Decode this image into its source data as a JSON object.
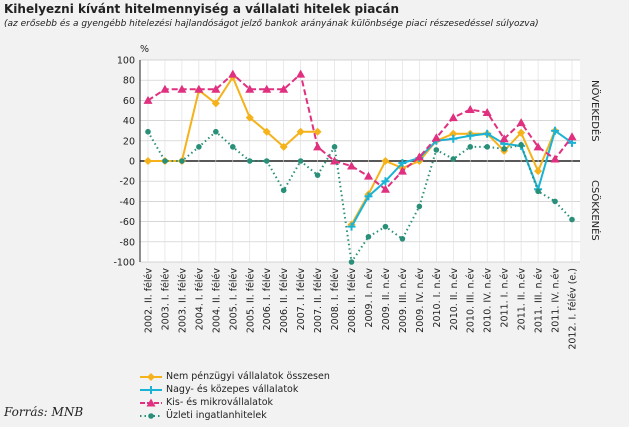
{
  "title": "Kihelyezni kívánt hitelmennyiség a vállalati hitelek piacán",
  "subtitle": "(az erősebb és a gyengébb hitelezési hajlandóságot jelző bankok arányának különbsége piaci részesedéssel súlyozva)",
  "source": "Forrás: MNB",
  "chart_data": {
    "type": "line",
    "ylabel": "%",
    "ylim": [
      -100,
      100
    ],
    "yticks": [
      100,
      80,
      60,
      40,
      20,
      0,
      -20,
      -40,
      -60,
      -80,
      -100
    ],
    "annotations": [
      "NÖVEKEDÉS",
      "CSÖKKENÉS"
    ],
    "categories": [
      "2002. II. félév",
      "2003. I. félév",
      "2003. II. félév",
      "2004. I. félév",
      "2004. II. félév",
      "2005. I. félév",
      "2005. II. félév",
      "2006. I. félév",
      "2006. II. félév",
      "2007. I. félév",
      "2007. II. félév",
      "2008. I. félév",
      "2008. II. félév",
      "2009. I. n.év",
      "2009. II. n.év",
      "2009. III. n.év",
      "2009. IV. n.év",
      "2010. I. n.év",
      "2010. II. n.év",
      "2010. III. n.év",
      "2010. IV. n.év",
      "2011. I. n.év",
      "2011. II. n.év",
      "2011. III. n.év",
      "2011. IV. n.év",
      "2012. I. félév (e.)"
    ],
    "series": [
      {
        "name": "Nem pénzügyi vállalatok összesen",
        "color": "#f5b21a",
        "marker": "diamond",
        "values": [
          0,
          0,
          0,
          70,
          57,
          83,
          43,
          29,
          14,
          29,
          29,
          null,
          -63,
          -33,
          0,
          -7,
          0,
          20,
          27,
          27,
          27,
          10,
          28,
          -10,
          30,
          null
        ]
      },
      {
        "name": "Nagy- és közepes vállalatok",
        "color": "#1ab3d6",
        "marker": "plus",
        "values": [
          null,
          null,
          null,
          null,
          null,
          null,
          null,
          null,
          null,
          null,
          null,
          null,
          -65,
          -35,
          -20,
          -2,
          3,
          20,
          22,
          25,
          27,
          17,
          15,
          -28,
          30,
          18
        ]
      },
      {
        "name": "Kis- és mikrovállalatok",
        "color": "#e0307f",
        "marker": "triangle",
        "values": [
          60,
          71,
          71,
          71,
          71,
          86,
          71,
          71,
          71,
          86,
          14,
          0,
          -5,
          -15,
          -28,
          -10,
          4,
          23,
          43,
          51,
          48,
          22,
          38,
          14,
          2,
          24
        ]
      },
      {
        "name": "Üzleti ingatlanhitelek",
        "color": "#2a8f78",
        "marker": "circle",
        "values": [
          29,
          0,
          0,
          14,
          29,
          14,
          0,
          0,
          -29,
          0,
          -14,
          14,
          -100,
          -75,
          -65,
          -77,
          -45,
          11,
          2,
          14,
          14,
          12,
          16,
          -30,
          -40,
          -58
        ]
      }
    ]
  }
}
